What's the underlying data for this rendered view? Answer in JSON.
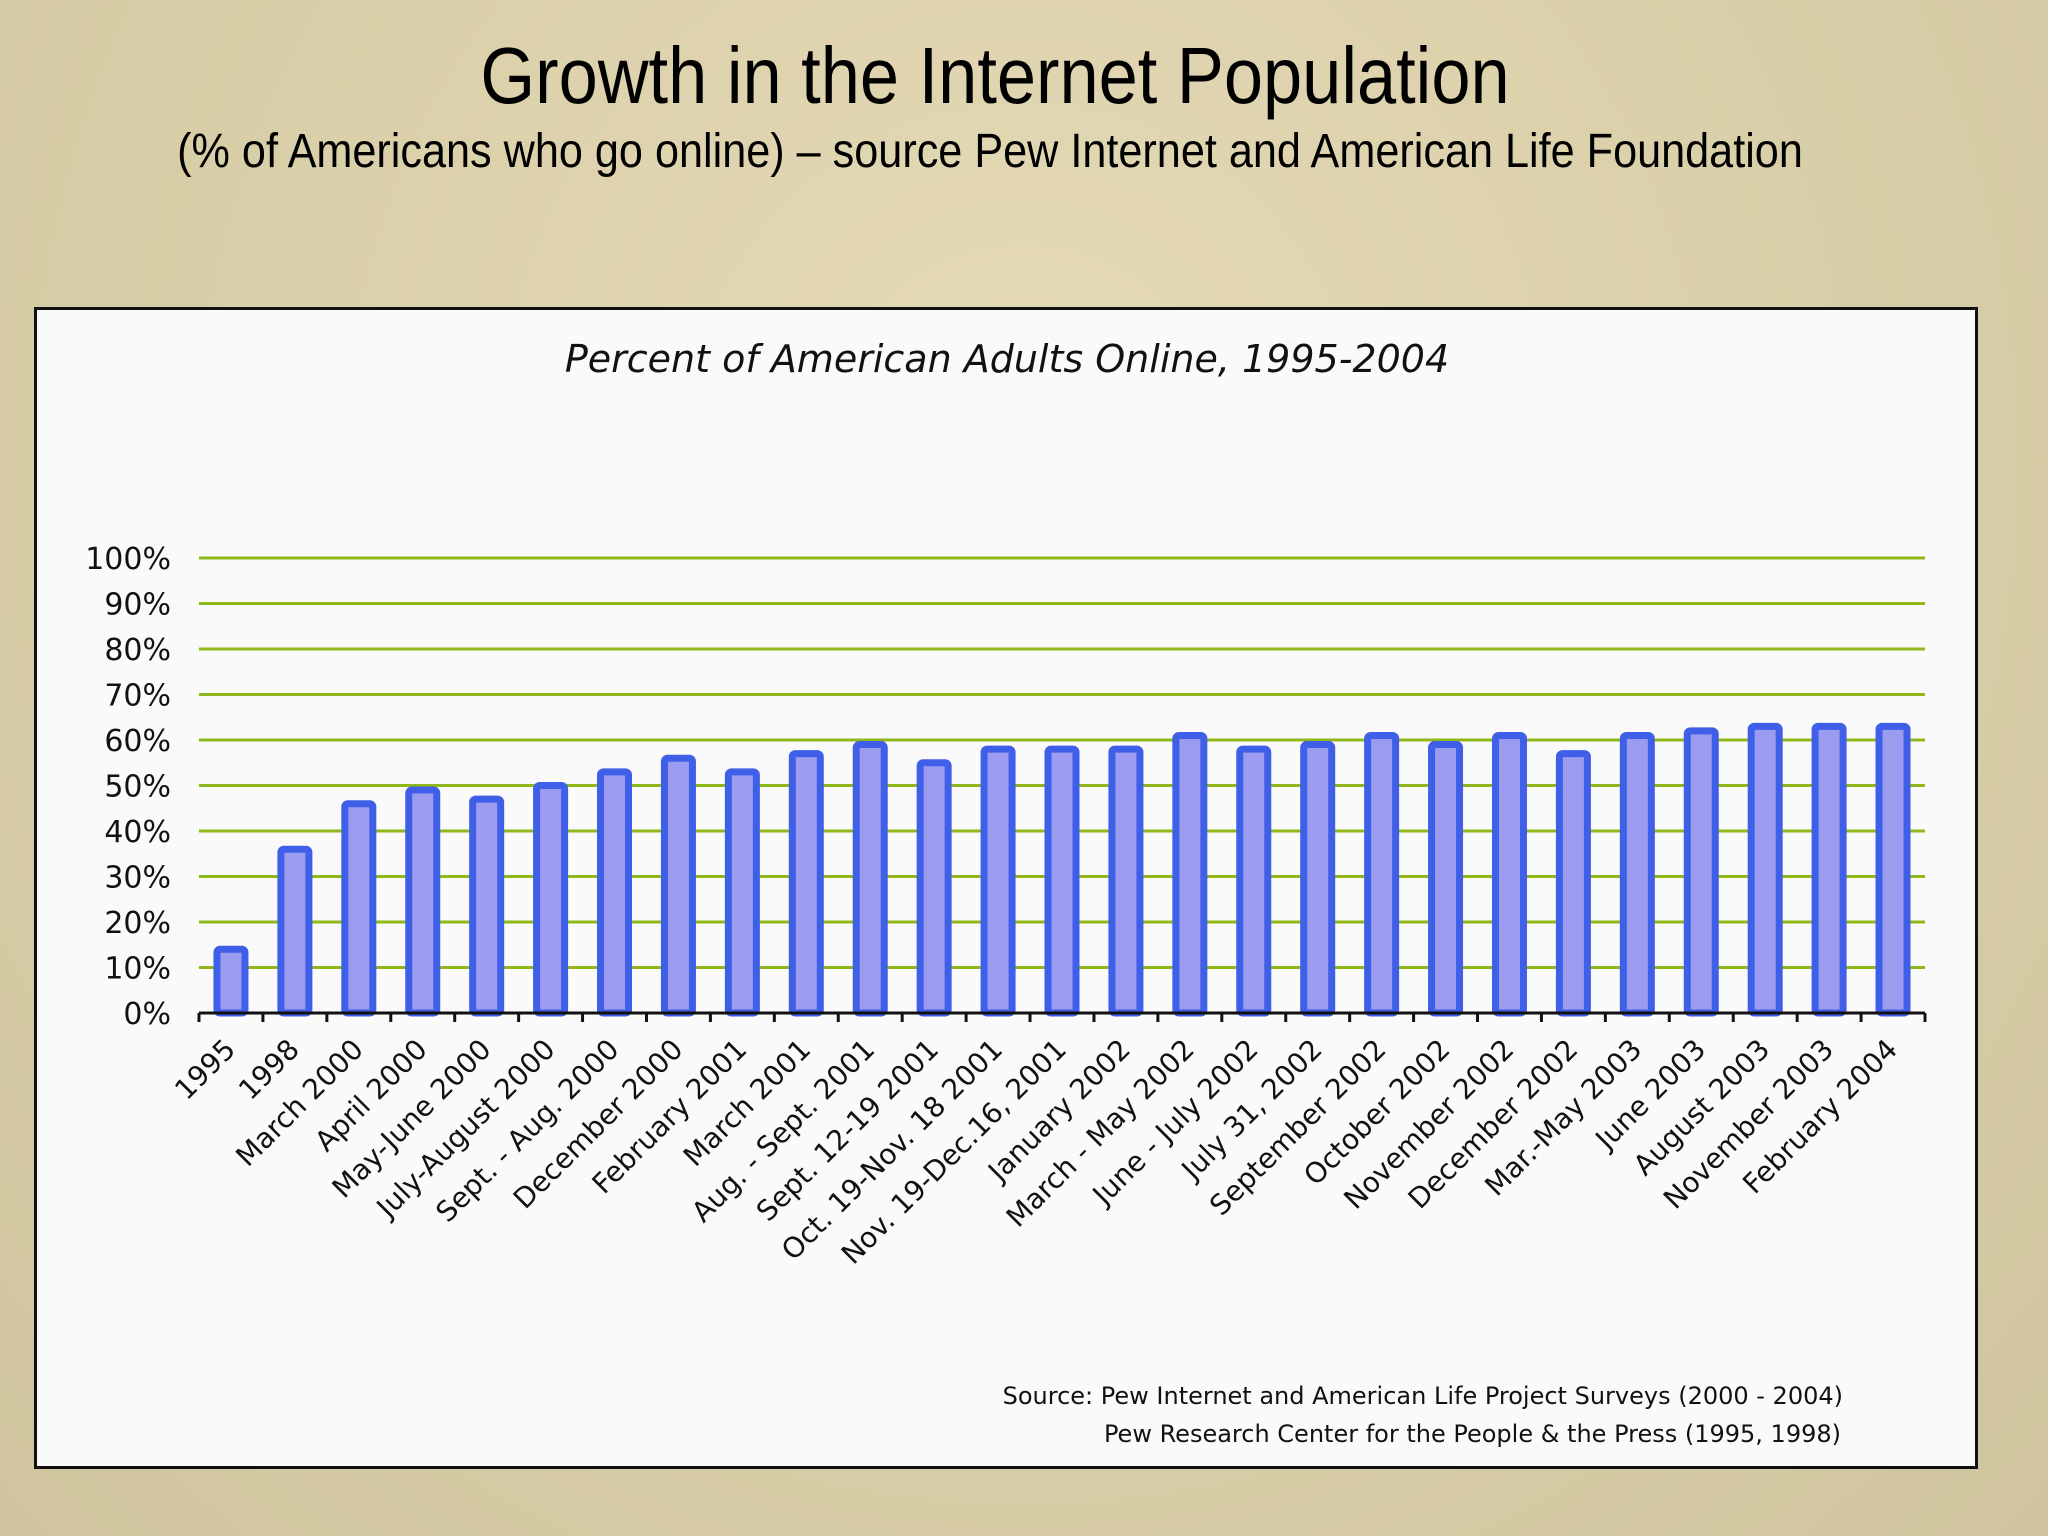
{
  "slide": {
    "title": "Growth in the Internet Population",
    "subtitle": "(% of Americans who go online) – source Pew Internet and American Life Foundation"
  },
  "colors": {
    "bar_fill": "#9b9bef",
    "bar_stroke": "#3f5fe8",
    "gridline": "#8fb81a",
    "axis": "#111111"
  },
  "chart_data": {
    "type": "bar",
    "title": "Percent of American Adults Online, 1995-2004",
    "xlabel": "",
    "ylabel": "",
    "ylim": [
      0,
      100
    ],
    "y_ticks": [
      "0%",
      "10%",
      "20%",
      "30%",
      "40%",
      "50%",
      "60%",
      "70%",
      "80%",
      "90%",
      "100%"
    ],
    "grid": true,
    "categories": [
      "1995",
      "1998",
      "March 2000",
      "April 2000",
      "May-June 2000",
      "July-August 2000",
      "Sept. - Aug. 2000",
      "December 2000",
      "February 2001",
      "March 2001",
      "Aug. - Sept. 2001",
      "Sept. 12-19 2001",
      "Oct. 19-Nov. 18 2001",
      "Nov. 19-Dec.16, 2001",
      "January 2002",
      "March - May 2002",
      "June - July 2002",
      "July 31, 2002",
      "September 2002",
      "October 2002",
      "November 2002",
      "December 2002",
      "Mar.-May 2003",
      "June 2003",
      "August 2003",
      "November 2003",
      "February 2004"
    ],
    "values": [
      14,
      36,
      46,
      49,
      47,
      50,
      53,
      56,
      53,
      57,
      59,
      55,
      58,
      58,
      58,
      61,
      58,
      59,
      61,
      59,
      61,
      57,
      61,
      62,
      63,
      63,
      63
    ],
    "source_lines": [
      "Source: Pew Internet and American Life Project Surveys (2000 - 2004)",
      "Pew Research Center for the People & the Press (1995, 1998)"
    ]
  }
}
